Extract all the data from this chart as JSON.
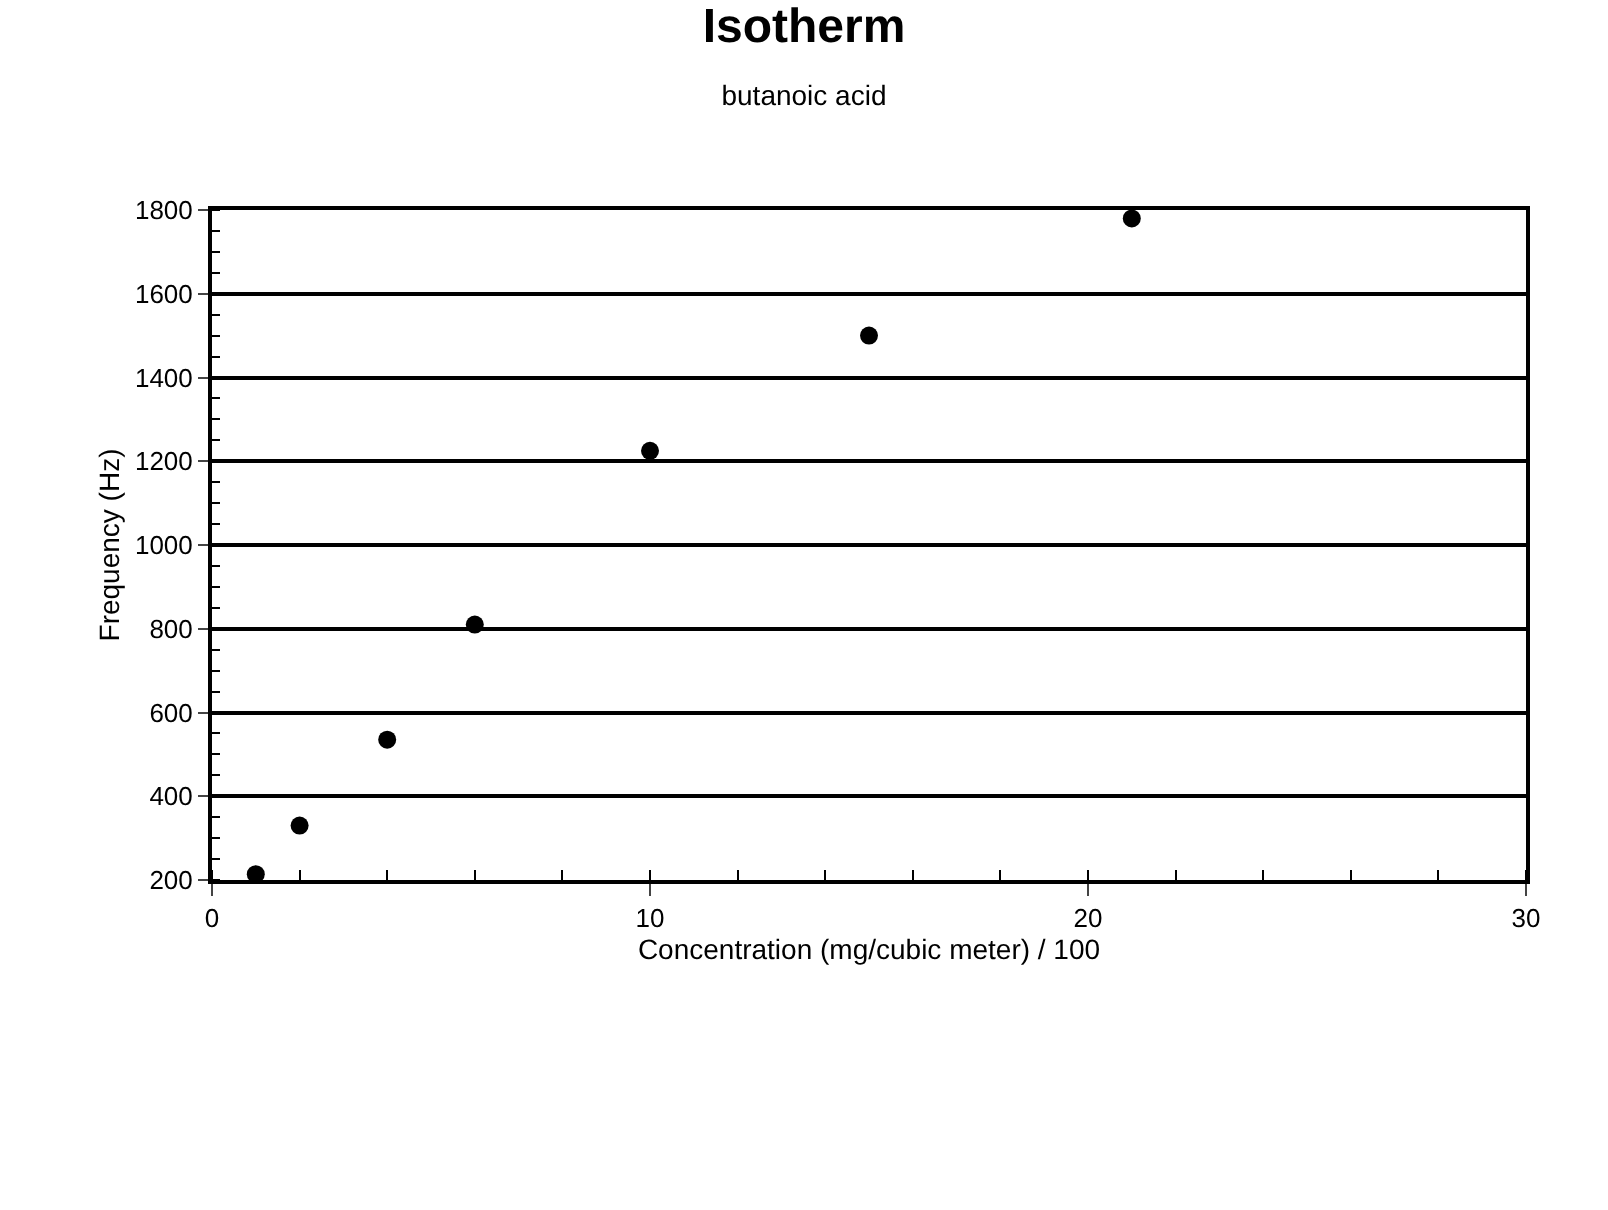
{
  "chart_data": {
    "type": "scatter",
    "title": "Isotherm",
    "subtitle": "butanoic acid",
    "xlabel": "Concentration (mg/cubic meter) / 100",
    "ylabel": "Frequency (Hz)",
    "x": [
      1,
      2,
      4,
      6,
      10,
      15,
      21
    ],
    "series": [
      {
        "color": "#000000",
        "values": [
          214,
          330,
          535,
          810,
          1225,
          1500,
          1780
        ]
      }
    ],
    "xlim": [
      0,
      30
    ],
    "xticks": [
      0,
      10,
      20,
      30
    ],
    "ylim": [
      200,
      1800
    ],
    "yticks": [
      200,
      400,
      600,
      800,
      1000,
      1200,
      1400,
      1600,
      1800
    ],
    "grid": "y",
    "marker": "circle"
  }
}
